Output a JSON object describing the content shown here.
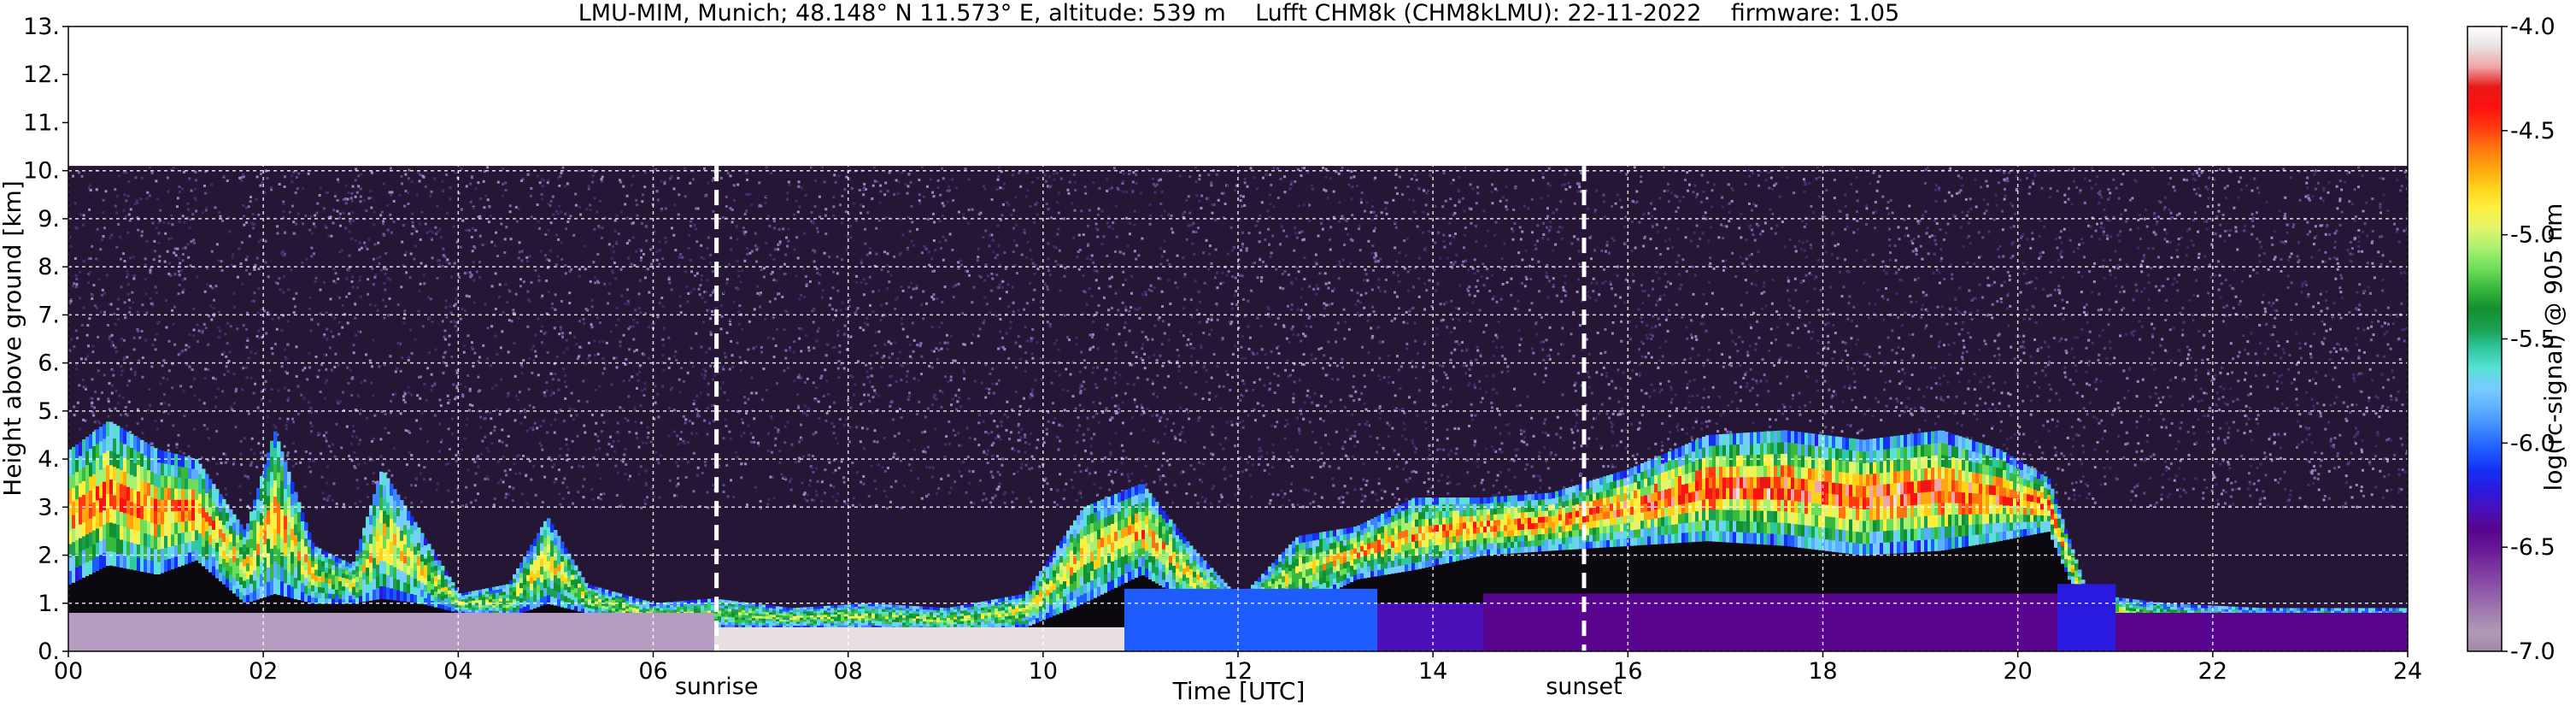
{
  "chart_data": {
    "type": "heatmap",
    "title": "LMU-MIM, Munich; 48.148° N 11.573° E, altitude: 539 m    Lufft CHM8k (CHM8kLMU): 22-11-2022    firmware: 1.05",
    "xlabel": "Time [UTC]",
    "ylabel": "Height above ground [km]",
    "xlim": [
      0,
      24
    ],
    "ylim": [
      0,
      13
    ],
    "x_ticks": [
      "00",
      "02",
      "04",
      "06",
      "08",
      "10",
      "12",
      "14",
      "16",
      "18",
      "20",
      "22",
      "24"
    ],
    "y_ticks": [
      "0.",
      "1.",
      "2.",
      "3.",
      "4.",
      "5.",
      "6.",
      "7.",
      "8.",
      "9.",
      "10.",
      "11.",
      "12.",
      "13."
    ],
    "grid": true,
    "data_top_km": 10.1,
    "colorbar": {
      "label": "log(rc-signal) @ 905 nm",
      "range": [
        -7.0,
        -4.0
      ],
      "ticks": [
        "-4.0",
        "-4.5",
        "-5.0",
        "-5.5",
        "-6.0",
        "-6.5",
        "-7.0"
      ],
      "colors": [
        "#a08aa8",
        "#b198b6",
        "#a07ab0",
        "#8f59a8",
        "#7d3aa0",
        "#6a1a98",
        "#58048f",
        "#4a10b8",
        "#2a1ae0",
        "#1530f5",
        "#1f5cff",
        "#3c86ff",
        "#5aaeff",
        "#78ccff",
        "#5ae0d8",
        "#30c8a0",
        "#1aa050",
        "#139030",
        "#38b83c",
        "#6ede5a",
        "#a8f070",
        "#e2f56c",
        "#fff040",
        "#ffd21a",
        "#ffa510",
        "#ff7410",
        "#ff3a10",
        "#ff1010",
        "#e81818",
        "#f0a6a6",
        "#e8e0e0",
        "#ffffff"
      ]
    },
    "annotations": [
      {
        "label": "sunrise",
        "time_utc": 6.65
      },
      {
        "label": "sunset",
        "time_utc": 15.55
      }
    ],
    "profile": [
      {
        "t": 0.0,
        "base": 1.4,
        "top": 4.2,
        "sat": 0.75
      },
      {
        "t": 0.4,
        "base": 1.8,
        "top": 4.8,
        "sat": 0.85
      },
      {
        "t": 0.9,
        "base": 1.6,
        "top": 4.2,
        "sat": 0.8
      },
      {
        "t": 1.3,
        "base": 1.9,
        "top": 4.0,
        "sat": 0.8
      },
      {
        "t": 1.8,
        "base": 1.0,
        "top": 2.5,
        "sat": 0.6
      },
      {
        "t": 2.1,
        "base": 1.2,
        "top": 4.6,
        "sat": 0.75
      },
      {
        "t": 2.5,
        "base": 1.0,
        "top": 2.2,
        "sat": 0.6
      },
      {
        "t": 2.9,
        "base": 1.0,
        "top": 1.8,
        "sat": 0.55
      },
      {
        "t": 3.2,
        "base": 1.1,
        "top": 3.8,
        "sat": 0.7
      },
      {
        "t": 3.6,
        "base": 1.0,
        "top": 2.5,
        "sat": 0.6
      },
      {
        "t": 4.0,
        "base": 0.8,
        "top": 1.2,
        "sat": 0.5
      },
      {
        "t": 4.5,
        "base": 0.7,
        "top": 1.4,
        "sat": 0.5
      },
      {
        "t": 4.9,
        "base": 1.0,
        "top": 2.8,
        "sat": 0.65
      },
      {
        "t": 5.3,
        "base": 0.8,
        "top": 1.4,
        "sat": 0.55
      },
      {
        "t": 6.0,
        "base": 0.5,
        "top": 1.0,
        "sat": 0.5
      },
      {
        "t": 6.6,
        "base": 0.5,
        "top": 1.1,
        "sat": 0.5
      },
      {
        "t": 7.4,
        "base": 0.5,
        "top": 0.9,
        "sat": 0.5
      },
      {
        "t": 8.2,
        "base": 0.5,
        "top": 1.0,
        "sat": 0.5
      },
      {
        "t": 9.0,
        "base": 0.4,
        "top": 0.9,
        "sat": 0.5
      },
      {
        "t": 9.8,
        "base": 0.5,
        "top": 1.2,
        "sat": 0.55
      },
      {
        "t": 10.4,
        "base": 1.0,
        "top": 3.0,
        "sat": 0.65
      },
      {
        "t": 11.0,
        "base": 1.6,
        "top": 3.5,
        "sat": 0.75
      },
      {
        "t": 11.5,
        "base": 1.0,
        "top": 2.2,
        "sat": 0.6
      },
      {
        "t": 12.0,
        "base": 0.6,
        "top": 1.1,
        "sat": 0.5
      },
      {
        "t": 12.6,
        "base": 0.9,
        "top": 2.4,
        "sat": 0.6
      },
      {
        "t": 13.2,
        "base": 1.5,
        "top": 2.6,
        "sat": 0.7
      },
      {
        "t": 13.8,
        "base": 1.7,
        "top": 3.2,
        "sat": 0.75
      },
      {
        "t": 14.5,
        "base": 2.0,
        "top": 3.2,
        "sat": 0.8
      },
      {
        "t": 15.2,
        "base": 2.1,
        "top": 3.3,
        "sat": 0.8
      },
      {
        "t": 16.0,
        "base": 2.2,
        "top": 3.8,
        "sat": 0.85
      },
      {
        "t": 16.8,
        "base": 2.3,
        "top": 4.5,
        "sat": 0.9
      },
      {
        "t": 17.6,
        "base": 2.2,
        "top": 4.6,
        "sat": 0.9
      },
      {
        "t": 18.4,
        "base": 2.0,
        "top": 4.4,
        "sat": 0.9
      },
      {
        "t": 19.2,
        "base": 2.1,
        "top": 4.6,
        "sat": 0.9
      },
      {
        "t": 19.8,
        "base": 2.3,
        "top": 4.2,
        "sat": 0.85
      },
      {
        "t": 20.3,
        "base": 2.5,
        "top": 3.6,
        "sat": 0.8
      },
      {
        "t": 20.7,
        "base": 0.6,
        "top": 1.2,
        "sat": 0.55
      },
      {
        "t": 21.5,
        "base": 0.4,
        "top": 1.0,
        "sat": 0.5
      },
      {
        "t": 22.5,
        "base": 0.4,
        "top": 0.9,
        "sat": 0.5
      },
      {
        "t": 23.4,
        "base": 0.4,
        "top": 0.9,
        "sat": 0.5
      },
      {
        "t": 24.0,
        "base": 0.3,
        "top": 0.9,
        "sat": 0.5
      }
    ],
    "surface_layer": [
      {
        "t": 0.0,
        "top": 0.8,
        "color": "#b79cc2"
      },
      {
        "t": 6.6,
        "top": 0.5,
        "color": "#e8e0e0"
      },
      {
        "t": 10.8,
        "top": 1.3,
        "color": "#1f5cff"
      },
      {
        "t": 13.4,
        "top": 1.0,
        "color": "#4a10b8"
      },
      {
        "t": 14.5,
        "top": 1.2,
        "color": "#58048f"
      },
      {
        "t": 20.4,
        "top": 1.4,
        "color": "#2a1ae0"
      },
      {
        "t": 21.0,
        "top": 0.8,
        "color": "#58048f"
      },
      {
        "t": 24.0,
        "top": 0.8,
        "color": "#58048f"
      }
    ]
  }
}
